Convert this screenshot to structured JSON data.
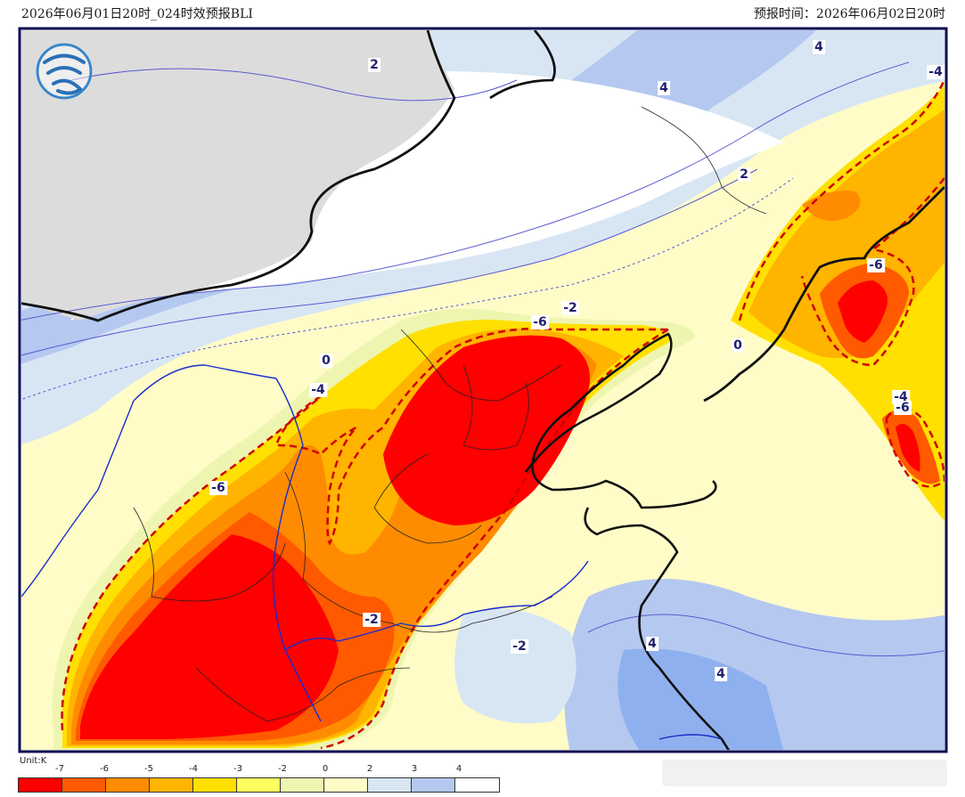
{
  "header": {
    "left_title": "2026年06月01日20时_024时效预报BLI",
    "right_title": "预报时间：2026年06月02日20时"
  },
  "logo": {
    "icon": "weather-agency-logo-icon"
  },
  "map": {
    "contour_labels": [
      "2",
      "4",
      "4",
      "2",
      "-4",
      "-6",
      "-2",
      "0",
      "-6",
      "0",
      "-4",
      "-6",
      "-4",
      "-6",
      "-2",
      "-2",
      "4",
      "4"
    ]
  },
  "legend": {
    "unit": "Unit:K",
    "ticks": [
      "-7",
      "-6",
      "-5",
      "-4",
      "-3",
      "-2",
      "0",
      "2",
      "3",
      "4"
    ],
    "colors": [
      "#ff0000",
      "#ff5a00",
      "#ff8c00",
      "#ffb400",
      "#ffe000",
      "#ffff60",
      "#eef5b0",
      "#fffcc8",
      "#d8e6f4",
      "#b4c8f0",
      "#ffffff"
    ]
  }
}
